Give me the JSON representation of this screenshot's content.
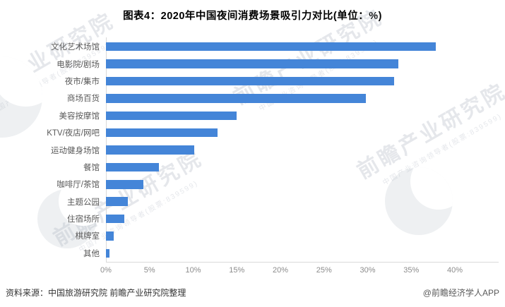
{
  "title": "图表4：2020年中国夜间消费场景吸引力对比(单位：%)",
  "chart_data": {
    "type": "bar",
    "orientation": "horizontal",
    "title": "图表4：2020年中国夜间消费场景吸引力对比(单位：%)",
    "categories": [
      "文化艺术场馆",
      "电影院/剧场",
      "夜市/集市",
      "商场百货",
      "美容按摩馆",
      "KTV/夜店/网吧",
      "运动健身场馆",
      "餐馆",
      "咖啡厅/茶馆",
      "主题公园",
      "住宿场所",
      "棋牌室",
      "其他"
    ],
    "values": [
      37.8,
      33.5,
      33.0,
      29.8,
      15.0,
      12.8,
      10.1,
      6.1,
      4.3,
      2.5,
      2.1,
      0.9,
      0.4
    ],
    "xlabel": "",
    "ylabel": "",
    "xlim": [
      0,
      40
    ],
    "x_ticks": [
      "0%",
      "5%",
      "10%",
      "15%",
      "20%",
      "25%",
      "30%",
      "35%",
      "40%"
    ],
    "grid": false,
    "legend_position": "none",
    "bar_color": "#4485d8"
  },
  "footer": {
    "source": "资料来源：中国旅游研究院 前瞻产业研究院整理",
    "credit": "@前瞻经济学人APP"
  },
  "watermark": {
    "text": "前瞻产业研究院",
    "subtext": "中国产业咨询领导者(股票:839599)"
  }
}
